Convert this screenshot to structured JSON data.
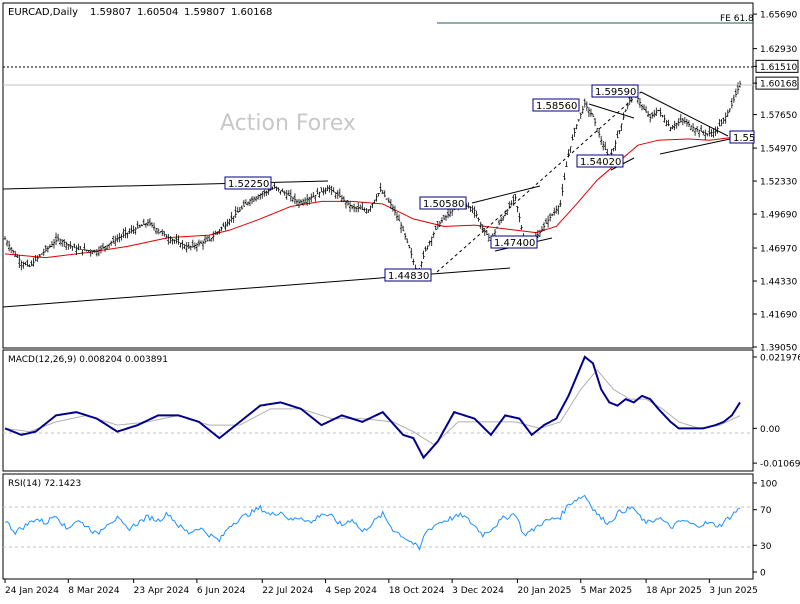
{
  "chart_data": [
    {
      "type": "line",
      "title": "EURCAD,Daily",
      "ohlc": {
        "open": "1.59807",
        "high": "1.60504",
        "low": "1.59807",
        "close": "1.60168"
      },
      "watermark": "Action Forex",
      "ylim": [
        1.3905,
        1.665
      ],
      "y_ticks": [
        "1.65690",
        "1.62930",
        "1.61510",
        "1.60168",
        "1.57650",
        "1.54970",
        "1.52330",
        "1.49690",
        "1.46970",
        "1.44330",
        "1.41690",
        "1.39050"
      ],
      "y_tick_values": [
        1.6569,
        1.6293,
        1.6151,
        1.60168,
        1.5765,
        1.5497,
        1.5233,
        1.4969,
        1.4697,
        1.4433,
        1.4169,
        1.3905
      ],
      "x_ticks": [
        "24 Jan 2024",
        "8 Mar 2024",
        "23 Apr 2024",
        "6 Jun 2024",
        "22 Jul 2024",
        "4 Sep 2024",
        "18 Oct 2024",
        "3 Dec 2024",
        "20 Jan 2025",
        "5 Mar 2025",
        "18 Apr 2025",
        "3 Jun 2025"
      ],
      "x_tick_index": [
        0,
        31,
        63,
        94,
        126,
        157,
        188,
        219,
        251,
        282,
        314,
        345
      ],
      "series": [
        {
          "name": "price",
          "anchors": [
            [
              0,
              1.477
            ],
            [
              4,
              1.467
            ],
            [
              8,
              1.458
            ],
            [
              12,
              1.455
            ],
            [
              18,
              1.465
            ],
            [
              26,
              1.477
            ],
            [
              35,
              1.469
            ],
            [
              45,
              1.467
            ],
            [
              58,
              1.48
            ],
            [
              70,
              1.49
            ],
            [
              80,
              1.478
            ],
            [
              90,
              1.47
            ],
            [
              100,
              1.476
            ],
            [
              110,
              1.492
            ],
            [
              120,
              1.508
            ],
            [
              126,
              1.513
            ],
            [
              132,
              1.518
            ],
            [
              138,
              1.513
            ],
            [
              144,
              1.506
            ],
            [
              152,
              1.512
            ],
            [
              158,
              1.518
            ],
            [
              164,
              1.511
            ],
            [
              170,
              1.502
            ],
            [
              178,
              1.5
            ],
            [
              184,
              1.516
            ],
            [
              190,
              1.502
            ],
            [
              194,
              1.488
            ],
            [
              198,
              1.47
            ],
            [
              202,
              1.448
            ],
            [
              206,
              1.468
            ],
            [
              212,
              1.488
            ],
            [
              218,
              1.498
            ],
            [
              224,
              1.506
            ],
            [
              230,
              1.5
            ],
            [
              234,
              1.485
            ],
            [
              238,
              1.476
            ],
            [
              242,
              1.489
            ],
            [
              246,
              1.5
            ],
            [
              250,
              1.51
            ],
            [
              254,
              1.478
            ],
            [
              258,
              1.474
            ],
            [
              262,
              1.482
            ],
            [
              266,
              1.492
            ],
            [
              272,
              1.505
            ],
            [
              276,
              1.545
            ],
            [
              280,
              1.568
            ],
            [
              284,
              1.585
            ],
            [
              288,
              1.575
            ],
            [
              292,
              1.556
            ],
            [
              296,
              1.541
            ],
            [
              300,
              1.558
            ],
            [
              304,
              1.58
            ],
            [
              308,
              1.596
            ],
            [
              312,
              1.583
            ],
            [
              316,
              1.574
            ],
            [
              320,
              1.58
            ],
            [
              326,
              1.566
            ],
            [
              332,
              1.572
            ],
            [
              338,
              1.565
            ],
            [
              344,
              1.561
            ],
            [
              348,
              1.563
            ],
            [
              352,
              1.572
            ],
            [
              356,
              1.584
            ],
            [
              360,
              1.601
            ]
          ]
        },
        {
          "name": "ma",
          "anchors": [
            [
              0,
              1.465
            ],
            [
              20,
              1.462
            ],
            [
              40,
              1.466
            ],
            [
              60,
              1.471
            ],
            [
              80,
              1.478
            ],
            [
              100,
              1.48
            ],
            [
              110,
              1.484
            ],
            [
              125,
              1.493
            ],
            [
              140,
              1.503
            ],
            [
              155,
              1.507
            ],
            [
              170,
              1.507
            ],
            [
              185,
              1.505
            ],
            [
              200,
              1.493
            ],
            [
              215,
              1.487
            ],
            [
              230,
              1.488
            ],
            [
              245,
              1.485
            ],
            [
              260,
              1.482
            ],
            [
              270,
              1.487
            ],
            [
              280,
              1.505
            ],
            [
              290,
              1.524
            ],
            [
              300,
              1.538
            ],
            [
              310,
              1.552
            ],
            [
              320,
              1.556
            ],
            [
              335,
              1.557
            ],
            [
              345,
              1.556
            ],
            [
              355,
              1.558
            ],
            [
              360,
              1.561
            ]
          ]
        }
      ],
      "annotations": [
        "1.52250",
        "1.50580",
        "1.47400",
        "1.44830",
        "1.58560",
        "1.59590",
        "1.54020",
        "1.55",
        "FE 61.8"
      ],
      "grid": false,
      "legend": "none"
    },
    {
      "type": "line",
      "title": "MACD(12,26,9) 0.008204 0.003891",
      "ylim": [
        -0.0125,
        0.0235
      ],
      "y_ticks": [
        "0.021976",
        "0.00",
        "-0.010692"
      ],
      "y_tick_values": [
        0.021976,
        0.0,
        -0.010692
      ],
      "series": [
        {
          "name": "macd",
          "anchors": [
            [
              0,
              0.0
            ],
            [
              8,
              -0.002
            ],
            [
              15,
              -0.001
            ],
            [
              25,
              0.004
            ],
            [
              35,
              0.005
            ],
            [
              45,
              0.003
            ],
            [
              55,
              -0.001
            ],
            [
              65,
              0.001
            ],
            [
              75,
              0.004
            ],
            [
              85,
              0.004
            ],
            [
              95,
              0.002
            ],
            [
              105,
              -0.003
            ],
            [
              115,
              0.002
            ],
            [
              125,
              0.007
            ],
            [
              135,
              0.008
            ],
            [
              145,
              0.006
            ],
            [
              155,
              0.001
            ],
            [
              165,
              0.004
            ],
            [
              175,
              0.002
            ],
            [
              185,
              0.005
            ],
            [
              195,
              -0.002
            ],
            [
              200,
              -0.003
            ],
            [
              205,
              -0.009
            ],
            [
              212,
              -0.004
            ],
            [
              220,
              0.005
            ],
            [
              230,
              0.003
            ],
            [
              238,
              -0.002
            ],
            [
              245,
              0.004
            ],
            [
              252,
              0.003
            ],
            [
              258,
              -0.002
            ],
            [
              264,
              0.001
            ],
            [
              270,
              0.003
            ],
            [
              276,
              0.01
            ],
            [
              280,
              0.016
            ],
            [
              284,
              0.022
            ],
            [
              288,
              0.02
            ],
            [
              292,
              0.012
            ],
            [
              296,
              0.008
            ],
            [
              300,
              0.007
            ],
            [
              304,
              0.009
            ],
            [
              308,
              0.008
            ],
            [
              312,
              0.01
            ],
            [
              316,
              0.009
            ],
            [
              320,
              0.006
            ],
            [
              326,
              0.002
            ],
            [
              330,
              0.0
            ],
            [
              336,
              0.0
            ],
            [
              342,
              0.0
            ],
            [
              348,
              0.001
            ],
            [
              352,
              0.002
            ],
            [
              356,
              0.004
            ],
            [
              360,
              0.008
            ]
          ]
        },
        {
          "name": "signal",
          "anchors": [
            [
              0,
              0.0
            ],
            [
              12,
              -0.001
            ],
            [
              25,
              0.002
            ],
            [
              40,
              0.004
            ],
            [
              55,
              0.001
            ],
            [
              70,
              0.002
            ],
            [
              85,
              0.004
            ],
            [
              100,
              0.001
            ],
            [
              115,
              0.001
            ],
            [
              130,
              0.006
            ],
            [
              145,
              0.006
            ],
            [
              160,
              0.003
            ],
            [
              175,
              0.003
            ],
            [
              190,
              0.002
            ],
            [
              200,
              -0.001
            ],
            [
              210,
              -0.005
            ],
            [
              222,
              0.002
            ],
            [
              235,
              0.002
            ],
            [
              250,
              0.002
            ],
            [
              262,
              0.0
            ],
            [
              272,
              0.002
            ],
            [
              282,
              0.012
            ],
            [
              290,
              0.018
            ],
            [
              298,
              0.012
            ],
            [
              306,
              0.009
            ],
            [
              314,
              0.009
            ],
            [
              322,
              0.006
            ],
            [
              330,
              0.002
            ],
            [
              340,
              0.0
            ],
            [
              350,
              0.001
            ],
            [
              360,
              0.0039
            ]
          ]
        }
      ],
      "grid": false,
      "legend": "none"
    },
    {
      "type": "line",
      "title": "RSI(14) 72.1423",
      "ylim": [
        0,
        100
      ],
      "y_ticks": [
        "100",
        "70",
        "30",
        "0"
      ],
      "y_tick_values": [
        100,
        70,
        30,
        0
      ],
      "series": [
        {
          "name": "rsi",
          "anchors": [
            [
              0,
              58
            ],
            [
              5,
              45
            ],
            [
              10,
              52
            ],
            [
              15,
              60
            ],
            [
              20,
              55
            ],
            [
              25,
              65
            ],
            [
              30,
              48
            ],
            [
              35,
              58
            ],
            [
              40,
              52
            ],
            [
              45,
              42
            ],
            [
              50,
              55
            ],
            [
              55,
              60
            ],
            [
              60,
              48
            ],
            [
              65,
              55
            ],
            [
              70,
              62
            ],
            [
              75,
              58
            ],
            [
              80,
              66
            ],
            [
              85,
              52
            ],
            [
              90,
              44
            ],
            [
              95,
              50
            ],
            [
              100,
              42
            ],
            [
              105,
              35
            ],
            [
              110,
              52
            ],
            [
              115,
              60
            ],
            [
              120,
              66
            ],
            [
              125,
              72
            ],
            [
              130,
              64
            ],
            [
              135,
              68
            ],
            [
              140,
              58
            ],
            [
              145,
              62
            ],
            [
              150,
              55
            ],
            [
              155,
              66
            ],
            [
              160,
              62
            ],
            [
              165,
              52
            ],
            [
              170,
              60
            ],
            [
              175,
              45
            ],
            [
              180,
              55
            ],
            [
              185,
              65
            ],
            [
              190,
              48
            ],
            [
              195,
              40
            ],
            [
              200,
              32
            ],
            [
              203,
              25
            ],
            [
              206,
              45
            ],
            [
              212,
              55
            ],
            [
              218,
              60
            ],
            [
              224,
              64
            ],
            [
              230,
              52
            ],
            [
              234,
              42
            ],
            [
              238,
              48
            ],
            [
              244,
              60
            ],
            [
              250,
              66
            ],
            [
              254,
              42
            ],
            [
              258,
              46
            ],
            [
              262,
              54
            ],
            [
              266,
              58
            ],
            [
              272,
              62
            ],
            [
              276,
              76
            ],
            [
              280,
              82
            ],
            [
              284,
              86
            ],
            [
              288,
              72
            ],
            [
              292,
              60
            ],
            [
              296,
              55
            ],
            [
              300,
              66
            ],
            [
              304,
              70
            ],
            [
              308,
              72
            ],
            [
              312,
              58
            ],
            [
              316,
              55
            ],
            [
              320,
              62
            ],
            [
              326,
              50
            ],
            [
              332,
              58
            ],
            [
              338,
              52
            ],
            [
              344,
              55
            ],
            [
              350,
              52
            ],
            [
              354,
              60
            ],
            [
              358,
              68
            ],
            [
              360,
              72
            ]
          ]
        }
      ],
      "grid": false,
      "legend": "none"
    }
  ]
}
